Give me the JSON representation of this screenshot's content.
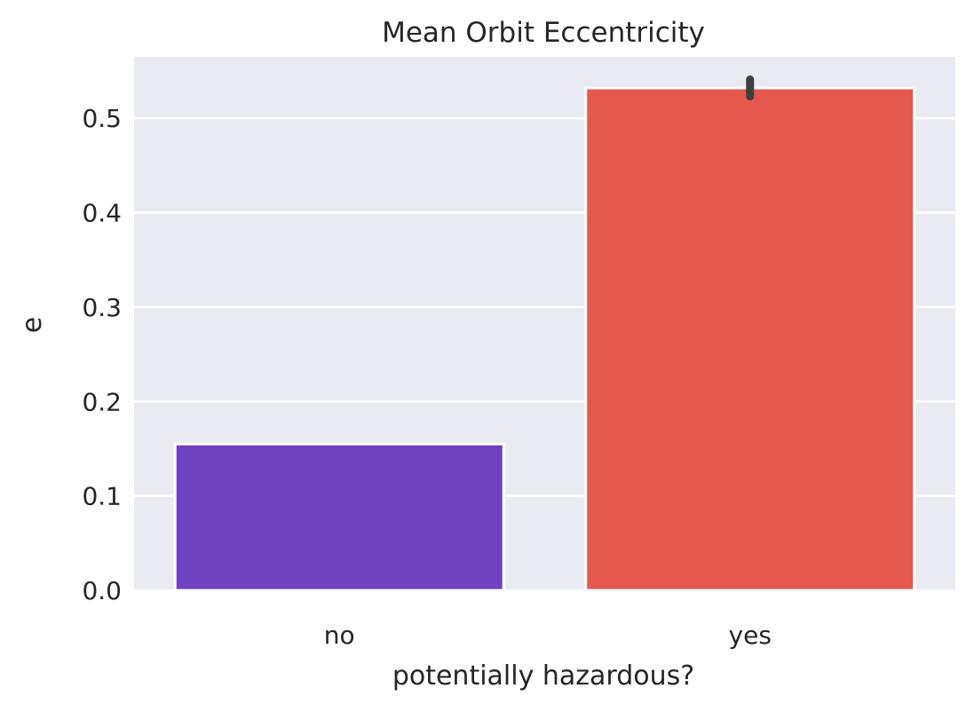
{
  "chart_data": {
    "type": "bar",
    "title": "Mean Orbit Eccentricity",
    "xlabel": "potentially hazardous?",
    "ylabel": "e",
    "categories": [
      "no",
      "yes"
    ],
    "values": [
      0.155,
      0.532
    ],
    "error_bars": [
      {
        "low": 0.155,
        "high": 0.155
      },
      {
        "low": 0.523,
        "high": 0.541
      }
    ],
    "colors": [
      "#6f42c1",
      "#e5584d"
    ],
    "ylim": [
      0,
      0.565
    ],
    "yticks": [
      0.0,
      0.1,
      0.2,
      0.3,
      0.4,
      0.5
    ],
    "ytick_labels": [
      "0.0",
      "0.1",
      "0.2",
      "0.3",
      "0.4",
      "0.5"
    ],
    "grid": true,
    "background_color": "#eaeaf2",
    "grid_color": "#ffffff",
    "errorbar_color": "#3f3f3f"
  }
}
